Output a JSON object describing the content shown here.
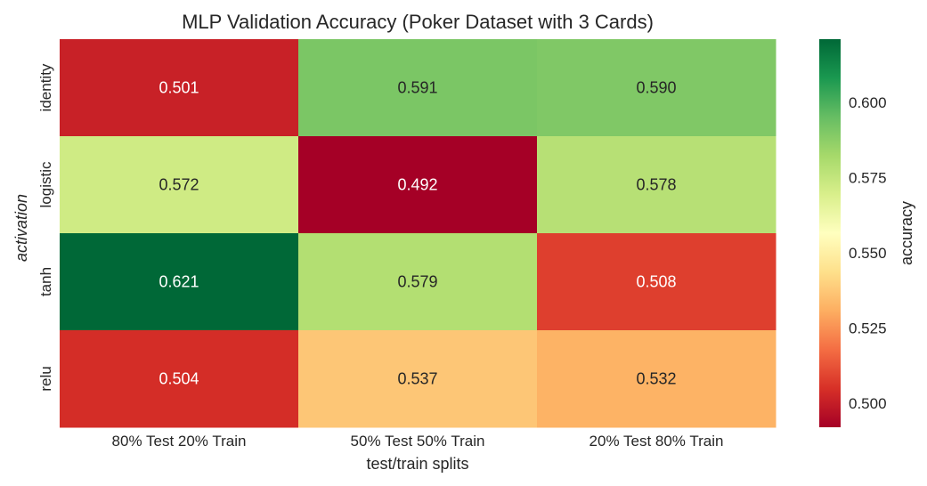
{
  "chart_data": {
    "type": "heatmap",
    "title": "MLP Validation Accuracy (Poker Dataset with 3 Cards)",
    "xlabel": "test/train splits",
    "ylabel": "activation",
    "x_categories": [
      "80% Test 20% Train",
      "50% Test 50% Train",
      "20% Test 80% Train"
    ],
    "y_categories": [
      "identity",
      "logistic",
      "tanh",
      "relu"
    ],
    "values": [
      [
        0.501,
        0.591,
        0.59
      ],
      [
        0.572,
        0.492,
        0.578
      ],
      [
        0.621,
        0.579,
        0.508
      ],
      [
        0.504,
        0.537,
        0.532
      ]
    ],
    "value_labels": [
      [
        "0.501",
        "0.591",
        "0.590"
      ],
      [
        "0.572",
        "0.492",
        "0.578"
      ],
      [
        "0.621",
        "0.579",
        "0.508"
      ],
      [
        "0.504",
        "0.537",
        "0.532"
      ]
    ],
    "colorbar": {
      "label": "accuracy",
      "range": [
        0.492,
        0.621
      ],
      "ticks": [
        0.5,
        0.525,
        0.55,
        0.575,
        0.6
      ],
      "tick_labels": [
        "0.500",
        "0.525",
        "0.550",
        "0.575",
        "0.600"
      ],
      "colormap": "RdYlGn"
    },
    "grid": false
  }
}
